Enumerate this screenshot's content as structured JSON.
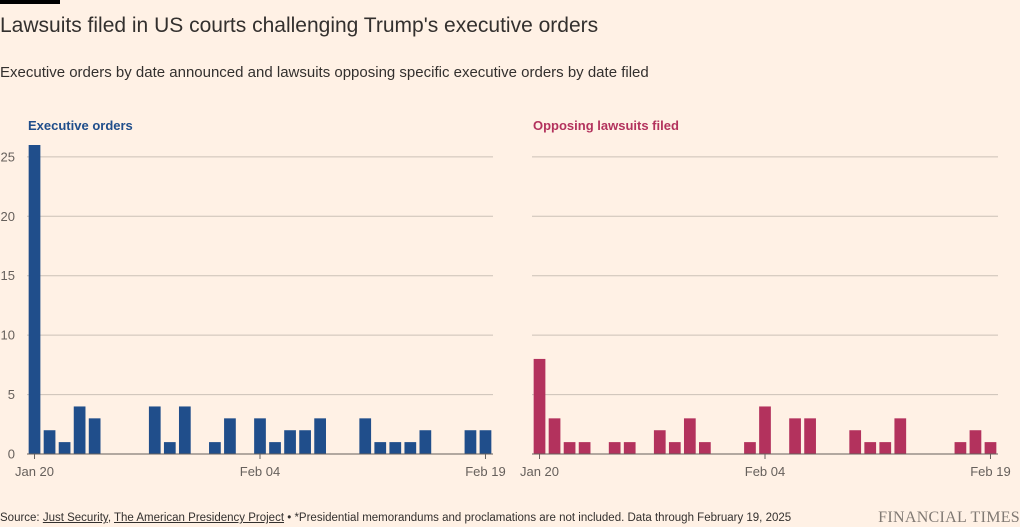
{
  "title": "Lawsuits filed in US courts challenging Trump's executive orders",
  "subtitle": "Executive orders by date announced and lawsuits opposing specific executive orders by date filed",
  "footer": {
    "source_prefix": "Source: ",
    "source_1": "Just Security",
    "source_sep": ", ",
    "source_2": "The American Presidency Project",
    "note": " • *Presidential memorandums and proclamations are not included. Data through February 19, 2025"
  },
  "logo": "FINANCIAL TIMES",
  "colors": {
    "background": "#fff1e5",
    "executive_orders": "#204e8b",
    "lawsuits": "#b3325d",
    "grid": "#ccc1b7",
    "text": "#33302e"
  },
  "chart_data": [
    {
      "type": "bar",
      "title": "Executive orders",
      "color": "#204e8b",
      "ylim": [
        0,
        26
      ],
      "yticks": [
        0,
        5,
        10,
        15,
        20,
        25
      ],
      "x_tick_labels": [
        "Jan 20",
        "Feb 04",
        "Feb 19"
      ],
      "categories": [
        "Jan 20",
        "Jan 21",
        "Jan 22",
        "Jan 23",
        "Jan 24",
        "Jan 25",
        "Jan 26",
        "Jan 27",
        "Jan 28",
        "Jan 29",
        "Jan 30",
        "Jan 31",
        "Feb 01",
        "Feb 02",
        "Feb 03",
        "Feb 04",
        "Feb 05",
        "Feb 06",
        "Feb 07",
        "Feb 08",
        "Feb 09",
        "Feb 10",
        "Feb 11",
        "Feb 12",
        "Feb 13",
        "Feb 14",
        "Feb 15",
        "Feb 16",
        "Feb 17",
        "Feb 18",
        "Feb 19"
      ],
      "values": [
        26,
        2,
        1,
        4,
        3,
        0,
        0,
        0,
        4,
        1,
        4,
        0,
        1,
        3,
        0,
        3,
        1,
        2,
        2,
        3,
        0,
        0,
        3,
        1,
        1,
        1,
        2,
        0,
        0,
        2,
        2
      ]
    },
    {
      "type": "bar",
      "title": "Opposing lawsuits filed",
      "color": "#b3325d",
      "ylim": [
        0,
        26
      ],
      "yticks": [
        0,
        5,
        10,
        15,
        20,
        25
      ],
      "x_tick_labels": [
        "Jan 20",
        "Feb 04",
        "Feb 19"
      ],
      "categories": [
        "Jan 20",
        "Jan 21",
        "Jan 22",
        "Jan 23",
        "Jan 24",
        "Jan 25",
        "Jan 26",
        "Jan 27",
        "Jan 28",
        "Jan 29",
        "Jan 30",
        "Jan 31",
        "Feb 01",
        "Feb 02",
        "Feb 03",
        "Feb 04",
        "Feb 05",
        "Feb 06",
        "Feb 07",
        "Feb 08",
        "Feb 09",
        "Feb 10",
        "Feb 11",
        "Feb 12",
        "Feb 13",
        "Feb 14",
        "Feb 15",
        "Feb 16",
        "Feb 17",
        "Feb 18",
        "Feb 19"
      ],
      "values": [
        8,
        3,
        1,
        1,
        0,
        1,
        1,
        0,
        2,
        1,
        3,
        1,
        0,
        0,
        1,
        4,
        0,
        3,
        3,
        0,
        0,
        2,
        1,
        1,
        3,
        0,
        0,
        0,
        1,
        2,
        1
      ]
    }
  ]
}
